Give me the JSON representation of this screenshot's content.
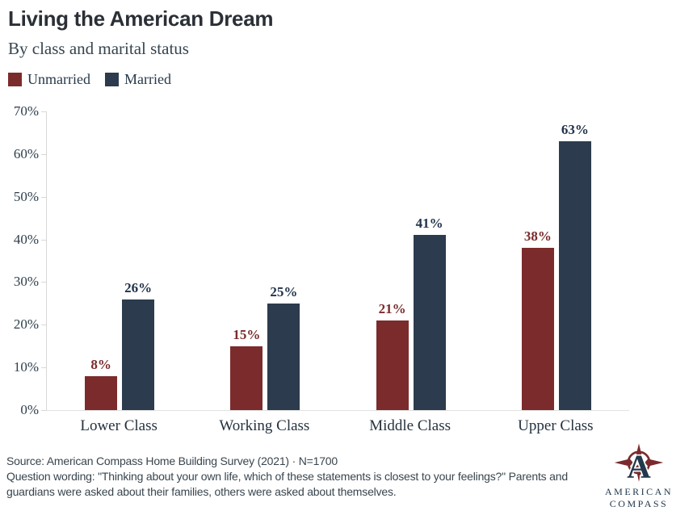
{
  "header": {
    "title": "Living the American Dream",
    "subtitle": "By class and marital status"
  },
  "chart_data": {
    "type": "bar",
    "categories": [
      "Lower Class",
      "Working Class",
      "Middle Class",
      "Upper Class"
    ],
    "series": [
      {
        "name": "Unmarried",
        "color": "#7b2b2b",
        "label_color": "#7b2b2b",
        "values": [
          8,
          15,
          21,
          38
        ]
      },
      {
        "name": "Married",
        "color": "#2c3b4d",
        "label_color": "#22334a",
        "values": [
          26,
          25,
          41,
          63
        ]
      }
    ],
    "title": "Living the American Dream",
    "subtitle": "By class and marital status",
    "xlabel": "",
    "ylabel": "",
    "ylim": [
      0,
      70
    ],
    "yticks": [
      0,
      10,
      20,
      30,
      40,
      50,
      60,
      70
    ],
    "ytick_suffix": "%",
    "value_label_suffix": "%",
    "grid": false,
    "legend_position": "top-left"
  },
  "footer": {
    "source_line": "Source: American Compass Home Building Survey (2021) · N=1700",
    "question_line": "Question wording: \"Thinking about your own life, which of these statements is closest to your feelings?\" Parents and guardians were asked about their families, others were asked about themselves.",
    "logo": {
      "line1": "AMERICAN",
      "line2": "COMPASS"
    }
  },
  "colors": {
    "unmarried": "#7b2b2b",
    "married": "#2c3b4d",
    "axis_line": "#d8d8d8",
    "baseline": "#e2e2e2",
    "text_dark": "#25323e",
    "logo_red": "#7a2a2d",
    "logo_navy": "#22384c"
  }
}
